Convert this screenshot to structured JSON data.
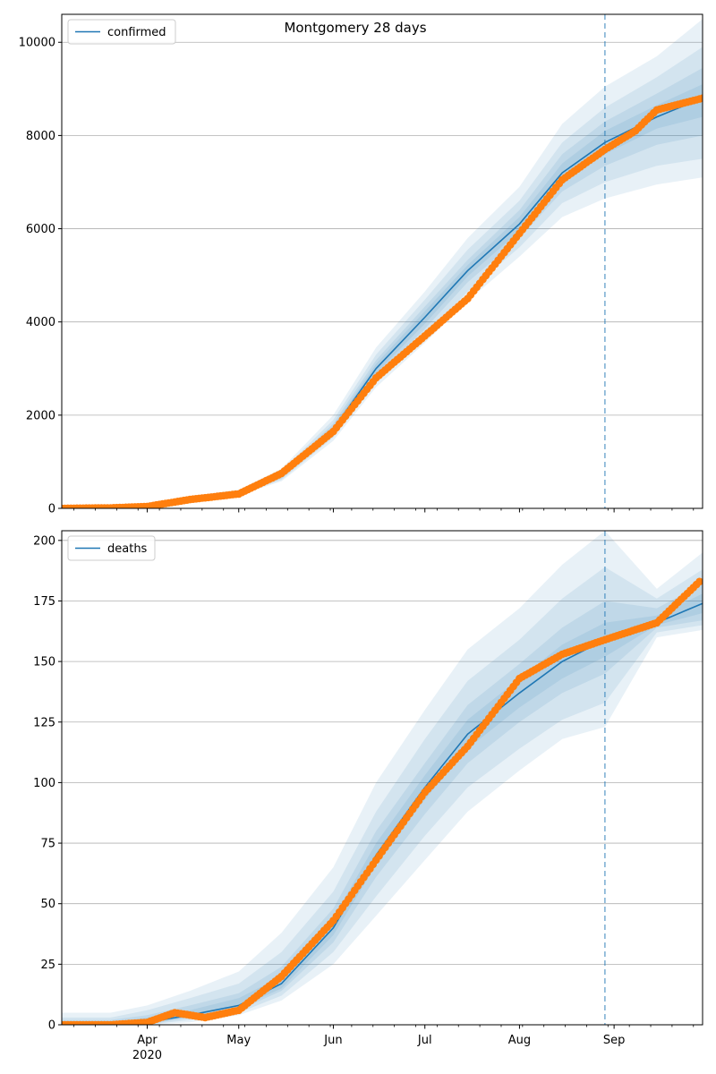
{
  "chart_data": [
    {
      "type": "line",
      "title": "Montgomery 28 days",
      "x_axis": {
        "type": "date",
        "range": [
          "2020-03-04",
          "2020-09-30"
        ],
        "major_ticks": [
          {
            "date": "2020-04-01",
            "label": "Apr",
            "sublabel": "2020"
          },
          {
            "date": "2020-05-01",
            "label": "May"
          },
          {
            "date": "2020-06-01",
            "label": "Jun"
          },
          {
            "date": "2020-07-01",
            "label": "Jul"
          },
          {
            "date": "2020-08-01",
            "label": "Aug"
          },
          {
            "date": "2020-09-01",
            "label": "Sep"
          }
        ],
        "tick_labels_shown": false
      },
      "ylim": [
        0,
        10600
      ],
      "y_ticks": [
        0,
        2000,
        4000,
        6000,
        8000,
        10000
      ],
      "grid": "horizontal",
      "legend": {
        "position": "top-left",
        "entries": [
          "confirmed"
        ]
      },
      "forecast_start": "2020-08-29",
      "colors": {
        "line": "#1f77b4",
        "points": "#ff7f0e",
        "band": "#1f77b4"
      },
      "series": [
        {
          "name": "confirmed",
          "kind": "line",
          "x": [
            "2020-03-04",
            "2020-03-20",
            "2020-04-01",
            "2020-04-15",
            "2020-05-01",
            "2020-05-15",
            "2020-06-01",
            "2020-06-15",
            "2020-07-01",
            "2020-07-15",
            "2020-08-01",
            "2020-08-15",
            "2020-08-29",
            "2020-09-15",
            "2020-09-30"
          ],
          "y": [
            0,
            10,
            60,
            200,
            330,
            700,
            1700,
            3000,
            4100,
            5100,
            6100,
            7200,
            7850,
            8400,
            8800
          ],
          "bands": [
            {
              "lower": [
                0,
                0,
                40,
                160,
                280,
                580,
                1450,
                2600,
                3550,
                4450,
                5400,
                6250,
                6650,
                6950,
                7100
              ],
              "upper": [
                0,
                20,
                90,
                260,
                400,
                850,
                2000,
                3450,
                4650,
                5800,
                6900,
                8250,
                9050,
                9700,
                10500
              ]
            },
            {
              "lower": [
                0,
                0,
                45,
                170,
                295,
                610,
                1520,
                2700,
                3700,
                4650,
                5600,
                6550,
                7000,
                7350,
                7500
              ],
              "upper": [
                0,
                15,
                80,
                240,
                375,
                800,
                1900,
                3300,
                4480,
                5550,
                6600,
                7850,
                8600,
                9250,
                9900
              ]
            },
            {
              "lower": [
                0,
                5,
                50,
                180,
                305,
                640,
                1580,
                2820,
                3850,
                4850,
                5800,
                6800,
                7350,
                7800,
                8000
              ],
              "upper": [
                0,
                15,
                70,
                225,
                355,
                760,
                1820,
                3180,
                4330,
                5330,
                6400,
                7600,
                8300,
                8900,
                9450
              ]
            },
            {
              "lower": [
                0,
                5,
                55,
                190,
                315,
                670,
                1640,
                2900,
                3960,
                4980,
                5950,
                7000,
                7600,
                8150,
                8400
              ],
              "upper": [
                0,
                15,
                65,
                210,
                345,
                730,
                1760,
                3100,
                4230,
                5220,
                6250,
                7400,
                8100,
                8650,
                9100
              ]
            }
          ]
        },
        {
          "name": "",
          "kind": "scatter",
          "x": [
            "2020-03-04",
            "2020-03-20",
            "2020-04-01",
            "2020-04-15",
            "2020-05-01",
            "2020-05-15",
            "2020-06-01",
            "2020-06-15",
            "2020-07-01",
            "2020-07-15",
            "2020-08-01",
            "2020-08-15",
            "2020-08-29",
            "2020-09-08",
            "2020-09-15",
            "2020-09-30"
          ],
          "y": [
            0,
            10,
            40,
            190,
            310,
            750,
            1650,
            2800,
            3700,
            4500,
            5900,
            7050,
            7700,
            8100,
            8550,
            8800
          ]
        }
      ]
    },
    {
      "type": "line",
      "title": "",
      "x_axis": {
        "type": "date",
        "range": [
          "2020-03-04",
          "2020-09-30"
        ],
        "major_ticks": [
          {
            "date": "2020-04-01",
            "label": "Apr",
            "sublabel": "2020"
          },
          {
            "date": "2020-05-01",
            "label": "May"
          },
          {
            "date": "2020-06-01",
            "label": "Jun"
          },
          {
            "date": "2020-07-01",
            "label": "Jul"
          },
          {
            "date": "2020-08-01",
            "label": "Aug"
          },
          {
            "date": "2020-09-01",
            "label": "Sep"
          }
        ],
        "tick_labels_shown": true
      },
      "ylim": [
        0,
        204
      ],
      "y_ticks": [
        0,
        25,
        50,
        75,
        100,
        125,
        150,
        175,
        200
      ],
      "grid": "horizontal",
      "legend": {
        "position": "top-left",
        "entries": [
          "deaths"
        ]
      },
      "forecast_start": "2020-08-29",
      "colors": {
        "line": "#1f77b4",
        "points": "#ff7f0e",
        "band": "#1f77b4"
      },
      "series": [
        {
          "name": "deaths",
          "kind": "line",
          "x": [
            "2020-03-04",
            "2020-03-20",
            "2020-04-01",
            "2020-04-15",
            "2020-05-01",
            "2020-05-15",
            "2020-06-01",
            "2020-06-15",
            "2020-07-01",
            "2020-07-15",
            "2020-08-01",
            "2020-08-15",
            "2020-08-29",
            "2020-09-15",
            "2020-09-30"
          ],
          "y": [
            0,
            0,
            1,
            4,
            8,
            17,
            40,
            70,
            98,
            120,
            137,
            150,
            159,
            166,
            174
          ],
          "bands": [
            {
              "lower": [
                0,
                0,
                0,
                1,
                4,
                10,
                25,
                45,
                68,
                88,
                105,
                118,
                123,
                160,
                163
              ],
              "upper": [
                5,
                5,
                8,
                14,
                22,
                38,
                65,
                100,
                130,
                155,
                172,
                190,
                204,
                180,
                195
              ]
            },
            {
              "lower": [
                0,
                0,
                0,
                2,
                5,
                12,
                30,
                53,
                78,
                98,
                114,
                126,
                133,
                162,
                165
              ],
              "upper": [
                3,
                3,
                6,
                11,
                17,
                30,
                55,
                88,
                118,
                142,
                159,
                176,
                189,
                176,
                188
              ]
            },
            {
              "lower": [
                0,
                0,
                0,
                3,
                6,
                14,
                34,
                61,
                87,
                108,
                125,
                137,
                145,
                164,
                167
              ],
              "upper": [
                2,
                2,
                4,
                8,
                13,
                24,
                48,
                80,
                108,
                132,
                149,
                164,
                175,
                172,
                182
              ]
            },
            {
              "lower": [
                0,
                0,
                1,
                3,
                7,
                15,
                37,
                66,
                93,
                114,
                131,
                143,
                152,
                165,
                170
              ],
              "upper": [
                1,
                1,
                3,
                6,
                11,
                20,
                44,
                75,
                103,
                126,
                143,
                157,
                166,
                169,
                178
              ]
            }
          ]
        },
        {
          "name": "",
          "kind": "scatter",
          "x": [
            "2020-03-04",
            "2020-03-20",
            "2020-04-01",
            "2020-04-10",
            "2020-04-20",
            "2020-05-01",
            "2020-05-15",
            "2020-06-01",
            "2020-06-15",
            "2020-07-01",
            "2020-07-15",
            "2020-08-01",
            "2020-08-15",
            "2020-08-29",
            "2020-09-15",
            "2020-09-29"
          ],
          "y": [
            0,
            0,
            1,
            5,
            3,
            6,
            20,
            43,
            68,
            96,
            115,
            143,
            153,
            159,
            166,
            183
          ]
        }
      ]
    }
  ]
}
